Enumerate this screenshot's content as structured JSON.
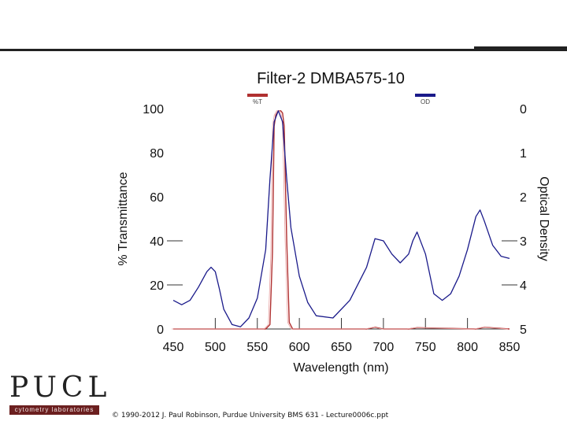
{
  "logo": {
    "text": "PUCL",
    "subtitle": "cytometry laboratories"
  },
  "footer": {
    "text": "© 1990-2012 J. Paul Robinson, Purdue University BMS 631 - Lecture0006c.ppt"
  },
  "chart_data": {
    "type": "line",
    "title": "Filter-2 DMBA575-10",
    "xlabel": "Wavelength (nm)",
    "ylabel": "% Transmittance",
    "y2label": "Optical Density",
    "xlim": [
      450,
      850
    ],
    "ylim": [
      0,
      100
    ],
    "y2lim": [
      0,
      5
    ],
    "y2_inverted": true,
    "x_ticks": [
      450,
      500,
      550,
      600,
      650,
      700,
      750,
      800,
      850
    ],
    "y_ticks": [
      0,
      20,
      40,
      60,
      80,
      100
    ],
    "y2_ticks": [
      0,
      1,
      2,
      3,
      4,
      5
    ],
    "legend": "top",
    "series": [
      {
        "name": "%T",
        "color": "#b03030",
        "x": [
          450,
          550,
          560,
          565,
          568,
          570,
          572,
          575,
          578,
          580,
          582,
          585,
          588,
          592,
          600,
          680,
          690,
          700,
          730,
          740,
          810,
          820,
          850
        ],
        "y": [
          0,
          0,
          0,
          2,
          35,
          92,
          97,
          99,
          99,
          98,
          92,
          40,
          3,
          0,
          0,
          0,
          0.8,
          0,
          0,
          0.6,
          0,
          0.8,
          0
        ]
      },
      {
        "name": "OD",
        "color": "#1a1a8a",
        "x": [
          450,
          460,
          470,
          480,
          490,
          495,
          500,
          505,
          510,
          520,
          530,
          540,
          550,
          560,
          565,
          570,
          575,
          580,
          585,
          590,
          600,
          610,
          620,
          640,
          660,
          680,
          690,
          700,
          710,
          720,
          730,
          735,
          740,
          750,
          760,
          770,
          780,
          790,
          800,
          810,
          815,
          820,
          830,
          840,
          850
        ],
        "y": [
          4.35,
          4.45,
          4.35,
          4.05,
          3.7,
          3.6,
          3.7,
          4.1,
          4.55,
          4.9,
          4.95,
          4.75,
          4.3,
          3.2,
          1.6,
          0.3,
          0.05,
          0.3,
          1.6,
          2.7,
          3.8,
          4.4,
          4.7,
          4.75,
          4.35,
          3.6,
          2.95,
          3.0,
          3.3,
          3.5,
          3.3,
          3.0,
          2.8,
          3.3,
          4.2,
          4.35,
          4.2,
          3.8,
          3.2,
          2.45,
          2.3,
          2.55,
          3.1,
          3.35,
          3.4
        ]
      }
    ]
  }
}
